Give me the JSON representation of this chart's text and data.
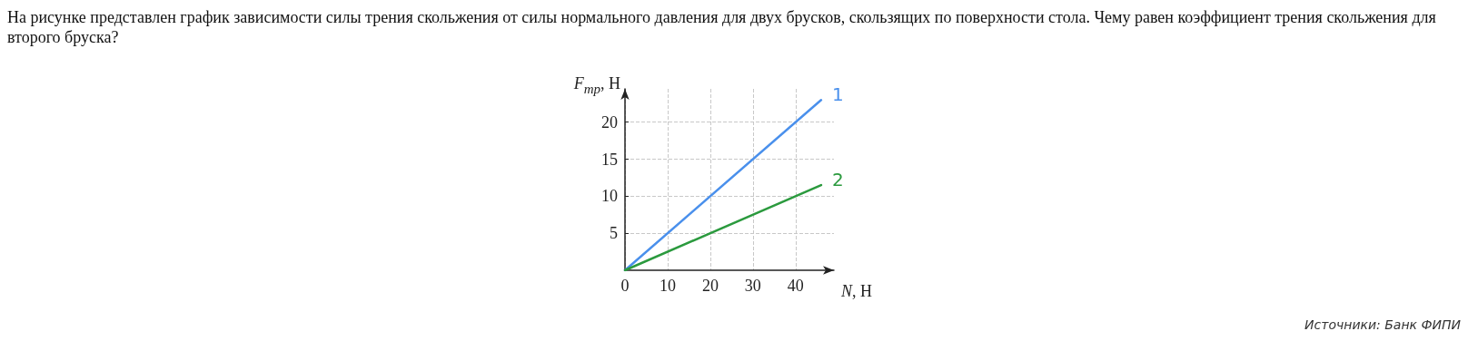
{
  "chart_data": {
    "type": "line",
    "title": "На рисунке представлен график зависимости силы трения скольжения от силы нормального давления для двух брусков, скользящих по поверхности стола. Чему равен коэффициент трения скольжения для второго бруска?",
    "xlabel": "N, Н",
    "ylabel": "F$_{тр}$, Н",
    "x": [
      0,
      46
    ],
    "series": [
      {
        "name": "1",
        "color": "#4a90ec",
        "values": [
          0,
          23
        ]
      },
      {
        "name": "2",
        "color": "#2b9a3e",
        "values": [
          0,
          11.5
        ]
      }
    ],
    "xlim": [
      0,
      49
    ],
    "ylim": [
      0,
      24.5
    ],
    "xticks": [
      0,
      10,
      20,
      30,
      40
    ],
    "yticks": [
      5,
      10,
      15,
      20
    ],
    "grid": true,
    "legend": false,
    "marker": "none",
    "line_style": "solid",
    "annotations": [
      "Источники: Банк ФИПИ"
    ]
  }
}
